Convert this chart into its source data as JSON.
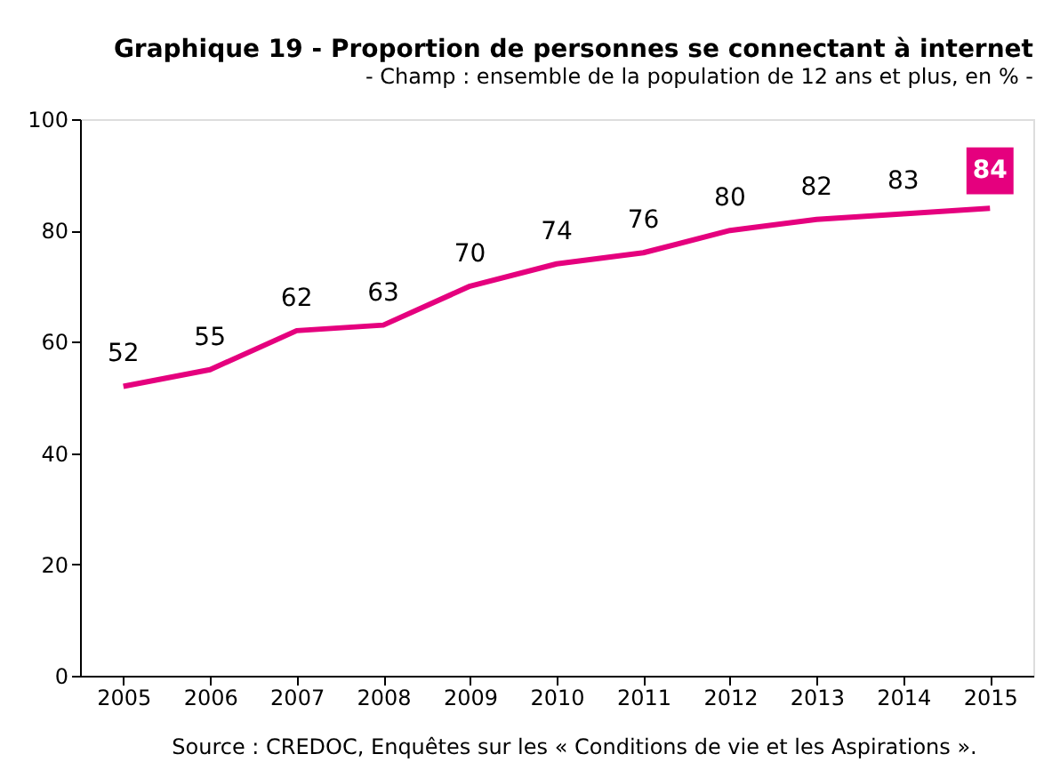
{
  "chart_data": {
    "type": "line",
    "title": "Graphique 19 - Proportion de personnes se connectant à internet",
    "subtitle": "- Champ : ensemble de la population de 12 ans et plus, en % -",
    "categories": [
      "2005",
      "2006",
      "2007",
      "2008",
      "2009",
      "2010",
      "2011",
      "2012",
      "2013",
      "2014",
      "2015"
    ],
    "values": [
      52,
      55,
      62,
      63,
      70,
      74,
      76,
      80,
      82,
      83,
      84
    ],
    "color": "#e5007e",
    "ylim": [
      0,
      100
    ],
    "yticks": [
      0,
      20,
      40,
      60,
      80,
      100
    ],
    "data_labels": true,
    "annotations": [
      "Source : CREDOC, Enquêtes sur les « Conditions de vie et les Aspirations »."
    ]
  }
}
